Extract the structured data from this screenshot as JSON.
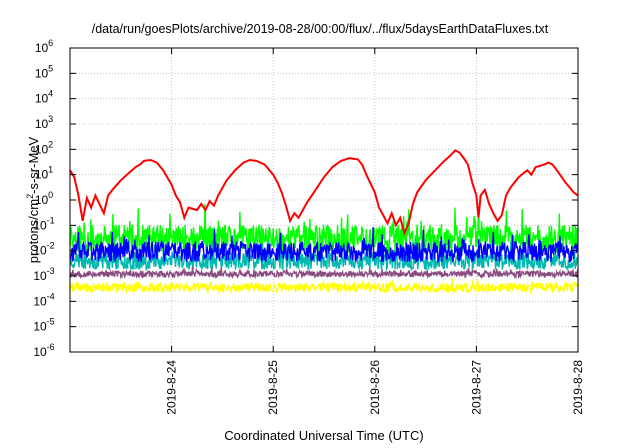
{
  "chart_data": {
    "type": "line",
    "title": "/data/run/goesPlots/archive/2019-08-28/00:00/flux/../flux/5daysEarthDataFluxes.txt",
    "xlabel": "Coordinated Universal Time (UTC)",
    "ylabel_parts": [
      "protons/cm",
      "2",
      "-s-sr-MeV"
    ],
    "yscale": "log",
    "ylim": [
      1e-06,
      1000000.0
    ],
    "yticks": [
      {
        "value": 1e-06,
        "base": "10",
        "exp": "-6"
      },
      {
        "value": 1e-05,
        "base": "10",
        "exp": "-5"
      },
      {
        "value": 0.0001,
        "base": "10",
        "exp": "-4"
      },
      {
        "value": 0.001,
        "base": "10",
        "exp": "-3"
      },
      {
        "value": 0.01,
        "base": "10",
        "exp": "-2"
      },
      {
        "value": 0.1,
        "base": "10",
        "exp": "-1"
      },
      {
        "value": 1,
        "base": "10",
        "exp": "0"
      },
      {
        "value": 10,
        "base": "10",
        "exp": "1"
      },
      {
        "value": 100,
        "base": "10",
        "exp": "2"
      },
      {
        "value": 1000,
        "base": "10",
        "exp": "3"
      },
      {
        "value": 10000,
        "base": "10",
        "exp": "4"
      },
      {
        "value": 100000,
        "base": "10",
        "exp": "5"
      },
      {
        "value": 1000000,
        "base": "10",
        "exp": "6"
      }
    ],
    "xlim": [
      "2019-08-23T00:00",
      "2019-08-28T00:00"
    ],
    "xticks": [
      {
        "value": "2019-08-24T00:00",
        "label": "2019-8-24"
      },
      {
        "value": "2019-08-25T00:00",
        "label": "2019-8-25"
      },
      {
        "value": "2019-08-26T00:00",
        "label": "2019-8-26"
      },
      {
        "value": "2019-08-27T00:00",
        "label": "2019-8-27"
      },
      {
        "value": "2019-08-28T00:00",
        "label": "2019-8-28"
      }
    ],
    "grid": true,
    "series": [
      {
        "color": "#ff0000",
        "points": [
          [
            "2019-08-23T00:00",
            15
          ],
          [
            "2019-08-23T01:00",
            8
          ],
          [
            "2019-08-23T02:00",
            1.5
          ],
          [
            "2019-08-23T03:00",
            0.15
          ],
          [
            "2019-08-23T04:00",
            1.2
          ],
          [
            "2019-08-23T05:00",
            0.5
          ],
          [
            "2019-08-23T06:00",
            1.5
          ],
          [
            "2019-08-23T08:00",
            0.3
          ],
          [
            "2019-08-23T09:00",
            1.5
          ],
          [
            "2019-08-23T10:00",
            2.5
          ],
          [
            "2019-08-23T12:00",
            6
          ],
          [
            "2019-08-23T14:00",
            12
          ],
          [
            "2019-08-23T15:30",
            20
          ],
          [
            "2019-08-23T16:30",
            25
          ],
          [
            "2019-08-23T17:30",
            35
          ],
          [
            "2019-08-23T19:00",
            38
          ],
          [
            "2019-08-23T20:30",
            30
          ],
          [
            "2019-08-23T22:00",
            15
          ],
          [
            "2019-08-24T00:00",
            4
          ],
          [
            "2019-08-24T01:00",
            1.5
          ],
          [
            "2019-08-24T02:00",
            0.8
          ],
          [
            "2019-08-24T03:00",
            0.2
          ],
          [
            "2019-08-24T04:00",
            0.5
          ],
          [
            "2019-08-24T06:00",
            0.4
          ],
          [
            "2019-08-24T07:00",
            0.7
          ],
          [
            "2019-08-24T08:00",
            0.4
          ],
          [
            "2019-08-24T09:00",
            0.9
          ],
          [
            "2019-08-24T10:00",
            0.6
          ],
          [
            "2019-08-24T11:00",
            1.5
          ],
          [
            "2019-08-24T13:00",
            6
          ],
          [
            "2019-08-24T15:00",
            15
          ],
          [
            "2019-08-24T17:00",
            30
          ],
          [
            "2019-08-24T18:30",
            38
          ],
          [
            "2019-08-24T20:00",
            35
          ],
          [
            "2019-08-24T22:00",
            25
          ],
          [
            "2019-08-25T00:00",
            10
          ],
          [
            "2019-08-25T01:00",
            5
          ],
          [
            "2019-08-25T02:00",
            2
          ],
          [
            "2019-08-25T03:00",
            0.6
          ],
          [
            "2019-08-25T04:00",
            0.15
          ],
          [
            "2019-08-25T05:00",
            0.3
          ],
          [
            "2019-08-25T06:00",
            0.2
          ],
          [
            "2019-08-25T08:00",
            0.8
          ],
          [
            "2019-08-25T10:00",
            2.5
          ],
          [
            "2019-08-25T12:00",
            8
          ],
          [
            "2019-08-25T14:00",
            20
          ],
          [
            "2019-08-25T16:00",
            35
          ],
          [
            "2019-08-25T18:00",
            45
          ],
          [
            "2019-08-25T20:00",
            40
          ],
          [
            "2019-08-25T21:00",
            25
          ],
          [
            "2019-08-25T22:00",
            10
          ],
          [
            "2019-08-26T00:00",
            2
          ],
          [
            "2019-08-26T01:00",
            0.5
          ],
          [
            "2019-08-26T02:00",
            0.25
          ],
          [
            "2019-08-26T03:00",
            0.12
          ],
          [
            "2019-08-26T04:00",
            0.3
          ],
          [
            "2019-08-26T05:00",
            0.1
          ],
          [
            "2019-08-26T06:00",
            0.2
          ],
          [
            "2019-08-26T07:00",
            0.05
          ],
          [
            "2019-08-26T08:00",
            0.12
          ],
          [
            "2019-08-26T09:00",
            0.7
          ],
          [
            "2019-08-26T10:00",
            2
          ],
          [
            "2019-08-26T12:00",
            6
          ],
          [
            "2019-08-26T13:00",
            9
          ],
          [
            "2019-08-26T15:00",
            20
          ],
          [
            "2019-08-26T16:00",
            30
          ],
          [
            "2019-08-26T18:00",
            60
          ],
          [
            "2019-08-26T19:00",
            90
          ],
          [
            "2019-08-26T20:00",
            75
          ],
          [
            "2019-08-26T21:00",
            45
          ],
          [
            "2019-08-26T22:00",
            25
          ],
          [
            "2019-08-26T23:00",
            5
          ],
          [
            "2019-08-27T00:00",
            1.5
          ],
          [
            "2019-08-27T00:30",
            0.2
          ],
          [
            "2019-08-27T01:00",
            1.5
          ],
          [
            "2019-08-27T02:00",
            2.5
          ],
          [
            "2019-08-27T03:00",
            0.7
          ],
          [
            "2019-08-27T04:00",
            0.3
          ],
          [
            "2019-08-27T05:00",
            0.15
          ],
          [
            "2019-08-27T06:00",
            0.25
          ],
          [
            "2019-08-27T07:00",
            1.5
          ],
          [
            "2019-08-27T08:00",
            3
          ],
          [
            "2019-08-27T10:00",
            8
          ],
          [
            "2019-08-27T12:00",
            15
          ],
          [
            "2019-08-27T13:00",
            10
          ],
          [
            "2019-08-27T14:00",
            20
          ],
          [
            "2019-08-27T16:00",
            25
          ],
          [
            "2019-08-27T17:00",
            30
          ],
          [
            "2019-08-27T18:00",
            25
          ],
          [
            "2019-08-27T19:00",
            15
          ],
          [
            "2019-08-27T21:00",
            5
          ],
          [
            "2019-08-27T23:00",
            2
          ],
          [
            "2019-08-28T00:00",
            1.5
          ]
        ]
      },
      {
        "color": "#00ff00",
        "center": 0.03,
        "spread": 0.55,
        "spike": 0.45,
        "seed": 11
      },
      {
        "color": "#00b8b0",
        "center": 0.004,
        "spread": 0.35,
        "spike": 0.3,
        "seed": 23
      },
      {
        "color": "#0000ff",
        "center": 0.009,
        "spread": 0.4,
        "spike": 0.35,
        "seed": 37
      },
      {
        "color": "#8a4b82",
        "center": 0.0012,
        "spread": 0.12,
        "spike": 0.1,
        "seed": 53
      },
      {
        "color": "#ffff00",
        "center": 0.00035,
        "spread": 0.18,
        "spike": 0.1,
        "seed": 71
      }
    ]
  }
}
